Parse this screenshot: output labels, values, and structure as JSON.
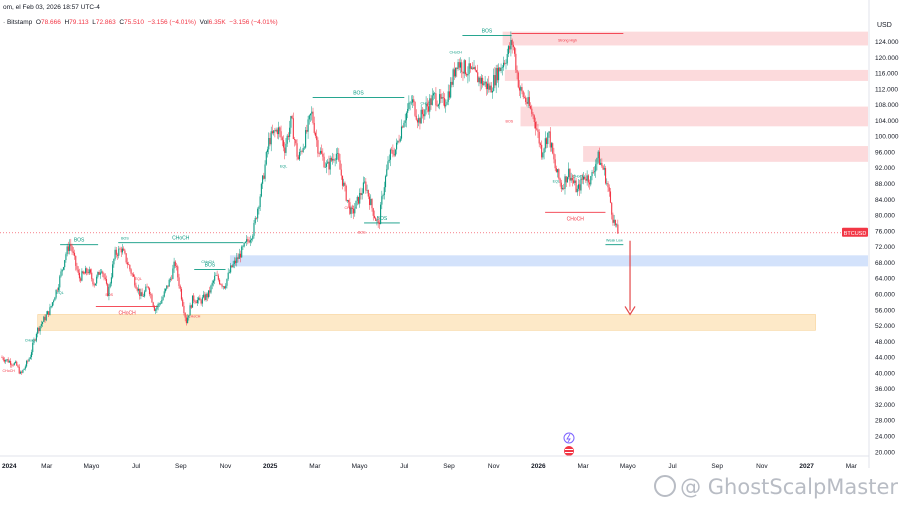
{
  "header": {
    "source_fragment": "om, el Feb 03, 2026 18:57 UTC-4",
    "exchange": "· Bitstamp",
    "open_label": "O",
    "open": "78.666",
    "high_label": "H",
    "high": "79.113",
    "low_label": "L",
    "low": "72.863",
    "close_label": "C",
    "close": "75.510",
    "change": "−3.156 (−4.01%)",
    "volume_label": "Vol",
    "volume": "6.35K",
    "change2": "−3.156 (−4.01%)"
  },
  "watermark": {
    "text": "@ GhostScalpMaster"
  },
  "colors": {
    "up": "#089981",
    "down": "#f23645",
    "bos": "#089981",
    "choch_down": "#f23645",
    "supply_zone": "#fcdadc",
    "blue_zone": "#d3e2fb",
    "orange_zone": "#fde9c8",
    "arrow": "#e4484a",
    "price_line": "#f23645"
  },
  "chart_data": {
    "type": "candlestick",
    "symbol": "BTCUSD",
    "currency": "USD",
    "y_ticks": [
      "124.000",
      "120.000",
      "116.000",
      "112.000",
      "108.000",
      "104.000",
      "100.000",
      "96.000",
      "92.000",
      "88.000",
      "84.000",
      "80.000",
      "76.000",
      "72.000",
      "68.000",
      "64.000",
      "60.000",
      "56.000",
      "52.000",
      "48.000",
      "44.000",
      "40.000",
      "36.000",
      "32.000",
      "28.000",
      "24.000",
      "20.000"
    ],
    "ylim": [
      17000,
      128500
    ],
    "x_ticks": [
      "2024",
      "Mar",
      "Mayo",
      "Jul",
      "Sep",
      "Nov",
      "2025",
      "Mar",
      "Mayo",
      "Jul",
      "Sep",
      "Nov",
      "2026",
      "Mar",
      "Mayo",
      "Jul",
      "Sep",
      "Nov",
      "2027",
      "Mar"
    ],
    "last_price": {
      "symbol": "BTCUSD",
      "prev": "75.520",
      "price": "75.510",
      "countdown": "01:02:15"
    },
    "zones": [
      {
        "type": "supply",
        "from_month": 22.4,
        "to_month": 41.2,
        "y0": 123000,
        "y1": 126500
      },
      {
        "type": "supply",
        "from_month": 22.5,
        "to_month": 41.2,
        "y0": 114000,
        "y1": 116800
      },
      {
        "type": "supply",
        "from_month": 23.2,
        "to_month": 41.2,
        "y0": 102500,
        "y1": 107500
      },
      {
        "type": "supply",
        "from_month": 26.0,
        "to_month": 41.2,
        "y0": 93500,
        "y1": 97500
      },
      {
        "type": "demand",
        "from_month": 10.2,
        "to_month": 41.2,
        "y0": 67000,
        "y1": 69800
      },
      {
        "type": "demand_major",
        "from_month": 1.6,
        "to_month": 36.4,
        "y0": 50800,
        "y1": 54800
      }
    ],
    "structure": [
      {
        "label": "BOS",
        "kind": "bos",
        "x0": 13.9,
        "x1": 18.0,
        "y": 109800
      },
      {
        "label": "BOS",
        "kind": "bos",
        "x0": 20.6,
        "x1": 22.8,
        "y": 125500
      },
      {
        "label": "CHoCH",
        "kind": "bos",
        "x0": 5.2,
        "x1": 10.8,
        "y": 73000
      },
      {
        "label": "CHoCH",
        "kind": "choch",
        "x0": 4.2,
        "x1": 7.0,
        "y": 56800
      },
      {
        "label": "CHoCH",
        "kind": "choch",
        "x0": 24.3,
        "x1": 27.0,
        "y": 80700
      },
      {
        "label": "BOS",
        "kind": "bos",
        "x0": 2.6,
        "x1": 4.3,
        "y": 72500
      },
      {
        "label": "BOS",
        "kind": "bos",
        "x0": 8.6,
        "x1": 10.0,
        "y": 66200
      },
      {
        "label": "BOS",
        "kind": "bos",
        "x0": 16.2,
        "x1": 17.8,
        "y": 78000
      },
      {
        "label": "Strong High",
        "kind": "choch",
        "x0": 22.8,
        "x1": 27.8,
        "y": 126000
      },
      {
        "label": "Weak Low",
        "kind": "bos",
        "x0": 27.0,
        "x1": 27.8,
        "y": 72500
      }
    ],
    "mini_labels": [
      {
        "t": "CHoCH",
        "m": 0.3,
        "y": 40200,
        "c": "down"
      },
      {
        "t": "CHoCH",
        "m": 1.3,
        "y": 48000,
        "c": "up"
      },
      {
        "t": "EQL",
        "m": 2.6,
        "y": 60000,
        "c": "up"
      },
      {
        "t": "BOS",
        "m": 3.8,
        "y": 65000,
        "c": "down"
      },
      {
        "t": "BOS",
        "m": 4.8,
        "y": 59500,
        "c": "down"
      },
      {
        "t": "EQL",
        "m": 6.1,
        "y": 63600,
        "c": "down"
      },
      {
        "t": "BOS",
        "m": 5.5,
        "y": 73800,
        "c": "up"
      },
      {
        "t": "CHoCH",
        "m": 8.6,
        "y": 54000,
        "c": "down"
      },
      {
        "t": "CHoCH",
        "m": 9.2,
        "y": 67800,
        "c": "up"
      },
      {
        "t": "EQL",
        "m": 12.6,
        "y": 92000,
        "c": "up"
      },
      {
        "t": "CHoCH",
        "m": 15.6,
        "y": 81500,
        "c": "down"
      },
      {
        "t": "BOS",
        "m": 16.1,
        "y": 75300,
        "c": "down"
      },
      {
        "t": "CHoCH",
        "m": 19.0,
        "y": 108000,
        "c": "up"
      },
      {
        "t": "CHoCH",
        "m": 20.3,
        "y": 121000,
        "c": "up"
      },
      {
        "t": "BOS",
        "m": 22.7,
        "y": 103500,
        "c": "down"
      },
      {
        "t": "EQL",
        "m": 24.8,
        "y": 88200,
        "c": "up"
      },
      {
        "t": "CHoCH",
        "m": 25.8,
        "y": 89500,
        "c": "up"
      }
    ],
    "projection_arrow": {
      "month": 28.1,
      "from": 73500,
      "to": 54800
    }
  }
}
